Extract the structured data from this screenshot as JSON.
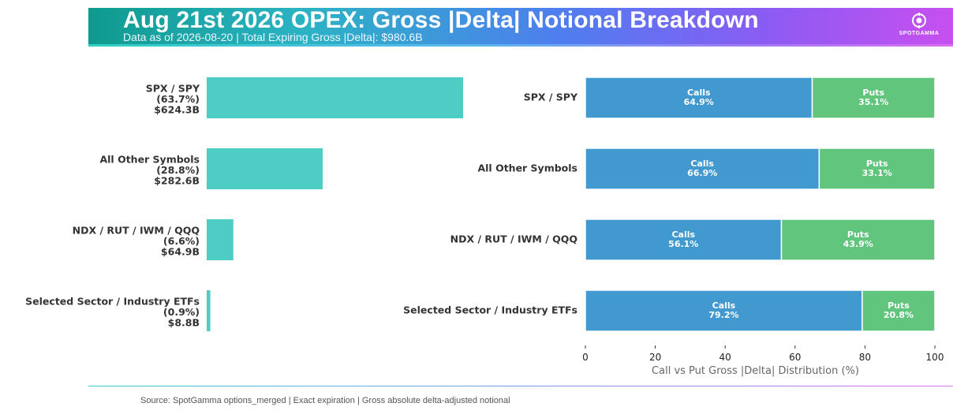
{
  "header": {
    "title": "Aug 21st 2026 OPEX: Gross |Delta| Notional Breakdown",
    "subtitle": "Data as of 2026-08-20 | Total Expiring Gross |Delta|: $980.6B",
    "logo_text": "SPOTGAMMA"
  },
  "footer": {
    "source": "Source: SpotGamma options_merged | Exact expiration | Gross absolute delta-adjusted notional"
  },
  "colors": {
    "notional_bar": "#4ecdc4",
    "calls": "#4199cf",
    "puts": "#61c57d"
  },
  "chart_data": [
    {
      "type": "bar",
      "orientation": "horizontal",
      "categories": [
        "SPX / SPY",
        "All Other Symbols",
        "NDX / RUT / IWM / QQQ",
        "Selected Sector / Industry ETFs"
      ],
      "values": [
        624.3,
        282.6,
        64.9,
        8.8
      ],
      "units": "B",
      "category_labels": [
        [
          "SPX / SPY",
          "(63.7%)",
          "$624.3B"
        ],
        [
          "All Other Symbols",
          "(28.8%)",
          "$282.6B"
        ],
        [
          "NDX / RUT / IWM / QQQ",
          "(6.6%)",
          "$64.9B"
        ],
        [
          "Selected Sector / Industry ETFs",
          "(0.9%)",
          "$8.8B"
        ]
      ],
      "xlabel": "",
      "ylabel": ""
    },
    {
      "type": "bar",
      "orientation": "horizontal",
      "stacked": true,
      "categories": [
        "SPX / SPY",
        "All Other Symbols",
        "NDX / RUT / IWM / QQQ",
        "Selected Sector / Industry ETFs"
      ],
      "series": [
        {
          "name": "Calls",
          "values": [
            64.9,
            66.9,
            56.1,
            79.2
          ],
          "labels": [
            "64.9%",
            "66.9%",
            "56.1%",
            "79.2%"
          ]
        },
        {
          "name": "Puts",
          "values": [
            35.1,
            33.1,
            43.9,
            20.8
          ],
          "labels": [
            "35.1%",
            "33.1%",
            "43.9%",
            "20.8%"
          ]
        }
      ],
      "xlabel": "Call vs Put Gross |Delta| Distribution (%)",
      "xlim": [
        0,
        100
      ],
      "xticks": [
        "0",
        "20",
        "40",
        "60",
        "80",
        "100"
      ]
    }
  ]
}
